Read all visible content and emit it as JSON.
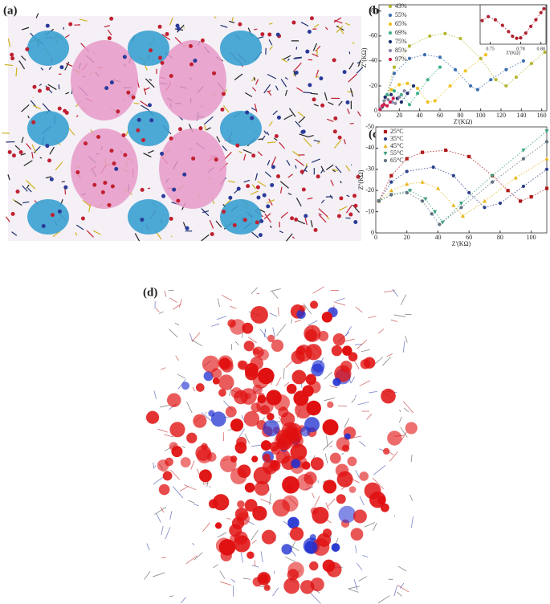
{
  "panels": [
    "(a)",
    "(b)",
    "(c)",
    "(d)"
  ],
  "chart_data": [
    {
      "type": "line",
      "xlabel": "Z'(KΩ)",
      "ylabel": "Z''(KΩ)",
      "xlim": [
        0,
        165
      ],
      "ylim": [
        0,
        -85
      ],
      "xticks": [
        0,
        20,
        40,
        60,
        80,
        100,
        120,
        140,
        160
      ],
      "yticks": [
        0,
        -20,
        -40,
        -60,
        -80
      ],
      "series": [
        {
          "name": "43%",
          "color": "#b5b531",
          "marker": "circle",
          "x": [
            5,
            15,
            30,
            50,
            65,
            80,
            100,
            115,
            125,
            135,
            150,
            163
          ],
          "values": [
            -5,
            -35,
            -52,
            -60,
            -62,
            -58,
            -42,
            -25,
            -20,
            -27,
            -38,
            -47
          ]
        },
        {
          "name": "55%",
          "color": "#3c6fb0",
          "marker": "circle",
          "x": [
            5,
            15,
            30,
            45,
            60,
            75,
            90,
            97,
            110,
            125,
            142
          ],
          "values": [
            -5,
            -30,
            -42,
            -45,
            -43,
            -33,
            -20,
            -17,
            -25,
            -33,
            -40
          ]
        },
        {
          "name": "65%",
          "color": "#f0c020",
          "marker": "circle",
          "x": [
            4,
            12,
            20,
            28,
            38,
            48,
            55,
            70,
            85,
            105
          ],
          "values": [
            -4,
            -17,
            -21,
            -22,
            -18,
            -7,
            -8,
            -20,
            -32,
            -45
          ]
        },
        {
          "name": "69%",
          "color": "#40b08a",
          "marker": "circle",
          "x": [
            3,
            8,
            15,
            22,
            30,
            38,
            48,
            60
          ],
          "values": [
            -3,
            -13,
            -16,
            -13,
            -5,
            -14,
            -25,
            -35
          ]
        },
        {
          "name": "75%",
          "color": "#1c2f6f",
          "marker": "circle",
          "x": [
            3,
            6,
            12,
            18,
            22,
            28,
            34
          ],
          "values": [
            -3,
            -11,
            -13,
            -10,
            -7,
            -14,
            -20
          ]
        },
        {
          "name": "85%",
          "color": "#8a8aa8",
          "marker": "circle",
          "x": [
            2,
            5,
            9,
            13,
            16,
            20,
            25
          ],
          "values": [
            -2,
            -8,
            -9,
            -7,
            -6,
            -11,
            -16
          ]
        },
        {
          "name": "97%",
          "color": "#d02050",
          "marker": "circle",
          "x": [
            1,
            3,
            5,
            8,
            11,
            14
          ],
          "values": [
            -1,
            -4,
            -5,
            -4,
            -7,
            -10
          ]
        }
      ]
    },
    {
      "type": "line",
      "xlabel": "Z'(KΩ)",
      "xlim": [
        0.74,
        0.805
      ],
      "ylim": [
        0,
        1
      ],
      "xticks": [
        0.75,
        0.78,
        {
          "value": 0.8,
          "label": "0.80"
        }
      ],
      "series": [
        {
          "color": "#b02030",
          "marker": "circle",
          "x": [
            0.742,
            0.748,
            0.755,
            0.762,
            0.768,
            0.772,
            0.776,
            0.78,
            0.785,
            0.79,
            0.795,
            0.8,
            0.803
          ],
          "values": [
            0.6,
            0.7,
            0.62,
            0.48,
            0.32,
            0.2,
            0.15,
            0.16,
            0.28,
            0.45,
            0.62,
            0.8,
            0.9
          ]
        }
      ]
    },
    {
      "type": "line",
      "xlabel": "Z'(KΩ)",
      "ylabel": "Z''(KΩ)",
      "xlim": [
        0,
        110
      ],
      "ylim": [
        0,
        -50
      ],
      "xticks": [
        0,
        20,
        40,
        60,
        80,
        100
      ],
      "yticks": [
        0,
        -10,
        -20,
        -30,
        -40,
        -50
      ],
      "series": [
        {
          "name": "25°C",
          "color": "#b01818",
          "marker": "square",
          "x": [
            2,
            10,
            20,
            30,
            45,
            60,
            75,
            85,
            93,
            100,
            110
          ],
          "values": [
            -15,
            -27,
            -35,
            -38,
            -39,
            -36,
            -27,
            -20,
            -15,
            -17,
            -21
          ]
        },
        {
          "name": "35°C",
          "color": "#2a3f8a",
          "marker": "circle",
          "x": [
            2,
            10,
            20,
            37,
            50,
            60,
            70,
            80,
            95,
            110
          ],
          "values": [
            -15,
            -24,
            -29,
            -31,
            -27,
            -19,
            -12,
            -14,
            -22,
            -30
          ]
        },
        {
          "name": "45°C",
          "color": "#e8b820",
          "marker": "triangle-up",
          "x": [
            2,
            10,
            20,
            30,
            40,
            50,
            56,
            70,
            90,
            110
          ],
          "values": [
            -15,
            -20,
            -23,
            -24,
            -21,
            -13,
            -8,
            -15,
            -26,
            -35
          ]
        },
        {
          "name": "55°C",
          "color": "#3aa080",
          "marker": "triangle-down",
          "x": [
            2,
            10,
            22,
            32,
            38,
            43,
            55,
            75,
            95,
            110
          ],
          "values": [
            -15,
            -18,
            -20,
            -16,
            -10,
            -5,
            -14,
            -27,
            -39,
            -48
          ]
        },
        {
          "name": "65°C",
          "color": "#607080",
          "marker": "circle",
          "x": [
            2,
            10,
            20,
            30,
            36,
            41,
            55,
            75,
            95,
            110
          ],
          "values": [
            -15,
            -18,
            -19,
            -15,
            -9,
            -4,
            -12,
            -24,
            -35,
            -43
          ]
        }
      ]
    }
  ]
}
